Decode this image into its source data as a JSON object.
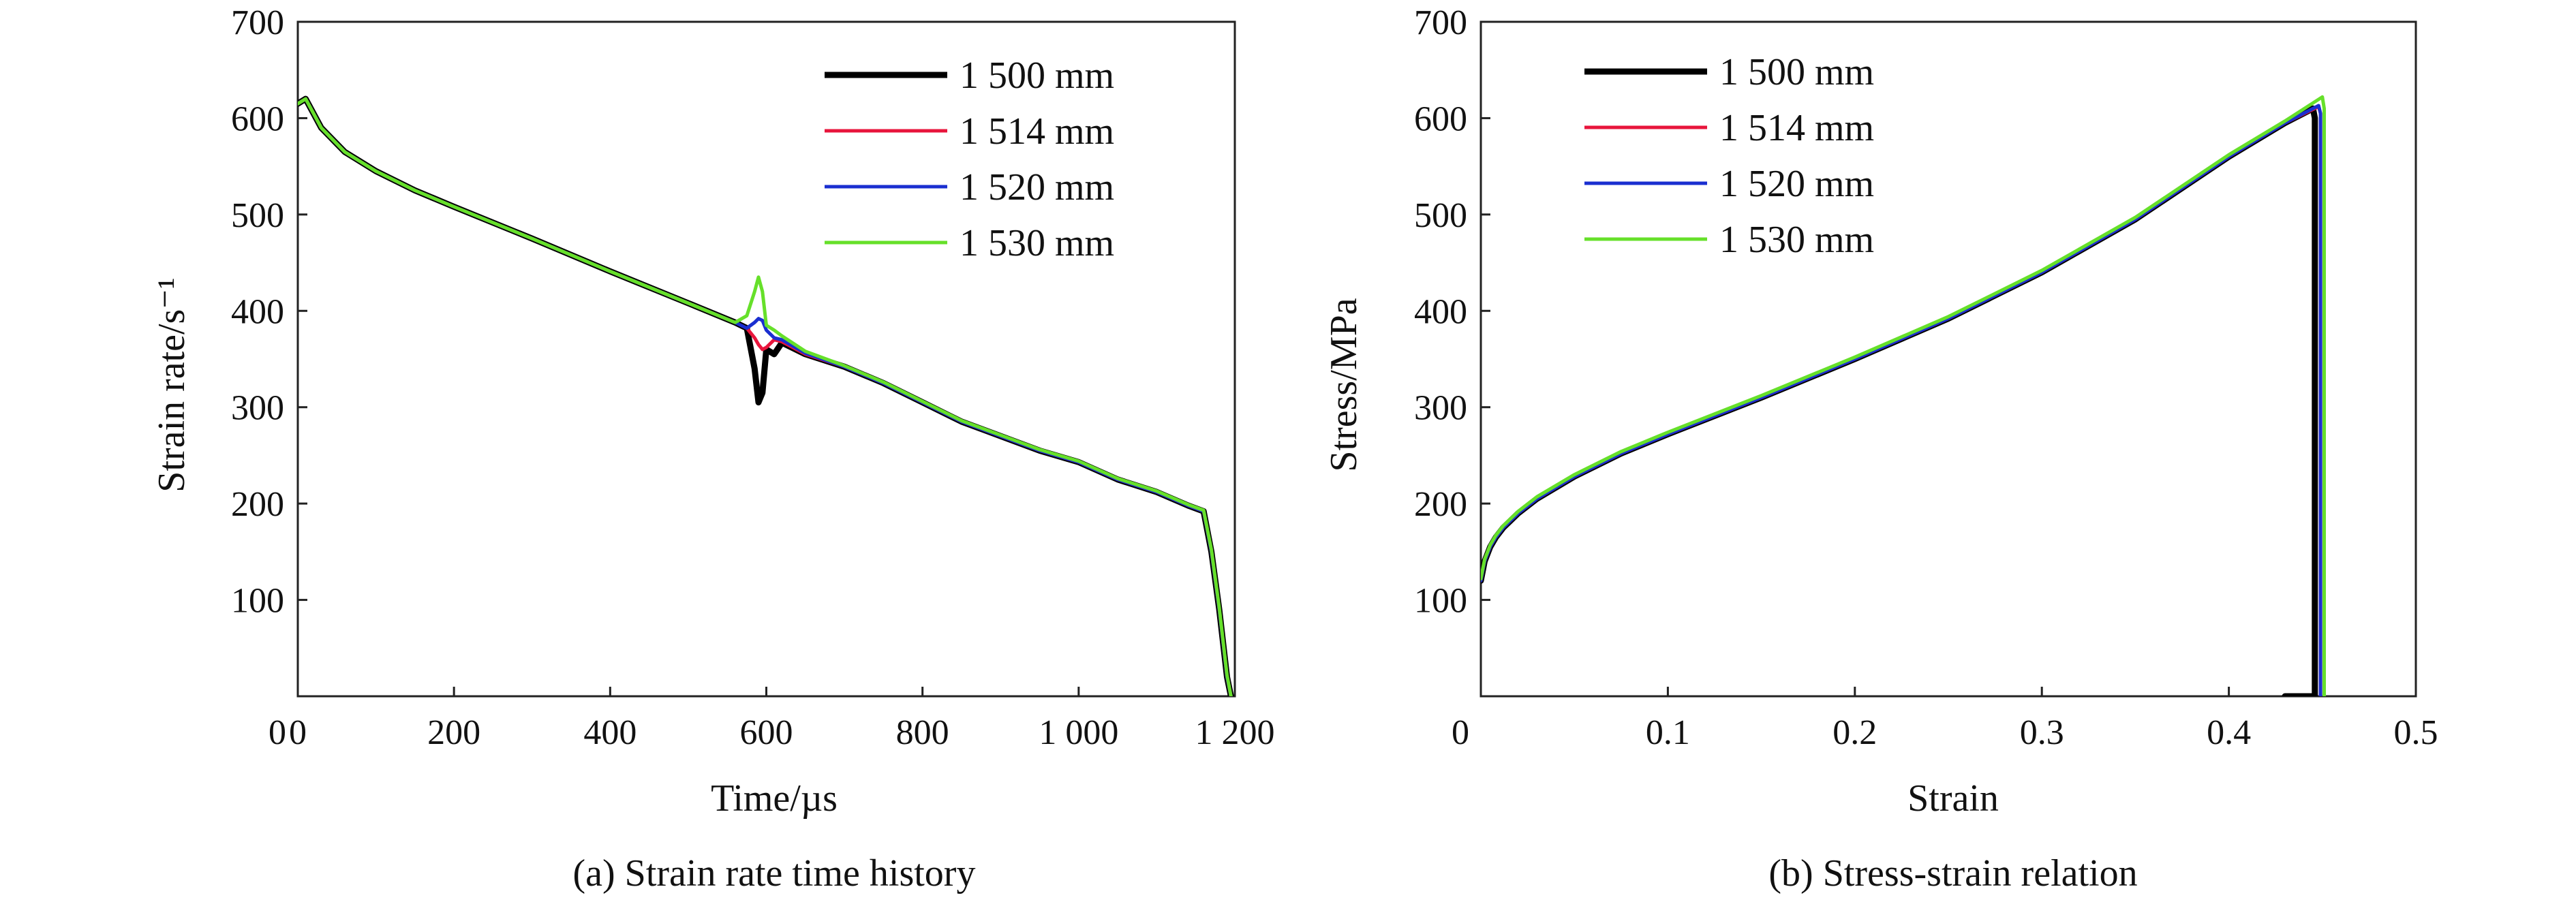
{
  "chart_data": [
    {
      "type": "line",
      "caption": "(a) Strain rate time history",
      "xlabel": "Time/µs",
      "ylabel": "Strain rate/s⁻¹",
      "xlim": [
        0,
        1200
      ],
      "ylim": [
        0,
        700
      ],
      "xticks": [
        0,
        200,
        400,
        600,
        800,
        1000,
        1200
      ],
      "xtick_labels": [
        "0",
        "200",
        "400",
        "600",
        "800",
        "1 000",
        "1 200"
      ],
      "yticks": [
        100,
        200,
        300,
        400,
        500,
        600,
        700
      ],
      "ytick_labels": [
        "100",
        "200",
        "300",
        "400",
        "500",
        "600",
        "700"
      ],
      "x_zero_label": "0",
      "legend_position": "top-right",
      "series": [
        {
          "name": "1 500 mm",
          "color": "#000000",
          "width": 9,
          "x": [
            0,
            10,
            30,
            60,
            100,
            150,
            200,
            300,
            400,
            500,
            560,
            575,
            585,
            590,
            595,
            600,
            610,
            620,
            650,
            700,
            750,
            800,
            850,
            900,
            950,
            1000,
            1050,
            1100,
            1140,
            1160,
            1170,
            1180,
            1190,
            1195
          ],
          "y": [
            615,
            620,
            590,
            565,
            545,
            525,
            508,
            475,
            441,
            408,
            388,
            382,
            340,
            305,
            315,
            360,
            355,
            367,
            355,
            342,
            325,
            305,
            285,
            270,
            255,
            243,
            225,
            212,
            198,
            192,
            150,
            90,
            20,
            0
          ]
        },
        {
          "name": "1 514 mm",
          "color": "#e8153c",
          "width": 5,
          "x": [
            0,
            10,
            30,
            60,
            100,
            150,
            200,
            300,
            400,
            500,
            560,
            575,
            585,
            590,
            595,
            600,
            610,
            620,
            650,
            700,
            750,
            800,
            850,
            900,
            950,
            1000,
            1050,
            1100,
            1140,
            1160,
            1170,
            1180,
            1190,
            1195
          ],
          "y": [
            615,
            620,
            590,
            565,
            545,
            525,
            508,
            475,
            441,
            408,
            388,
            382,
            372,
            365,
            360,
            362,
            370,
            368,
            355,
            342,
            325,
            305,
            285,
            270,
            255,
            243,
            225,
            212,
            198,
            192,
            150,
            90,
            20,
            0
          ]
        },
        {
          "name": "1 520 mm",
          "color": "#1a2fd0",
          "width": 5,
          "x": [
            0,
            10,
            30,
            60,
            100,
            150,
            200,
            300,
            400,
            500,
            560,
            575,
            585,
            590,
            595,
            600,
            610,
            620,
            650,
            700,
            750,
            800,
            850,
            900,
            950,
            1000,
            1050,
            1100,
            1140,
            1160,
            1170,
            1180,
            1190,
            1195
          ],
          "y": [
            615,
            620,
            590,
            565,
            545,
            525,
            508,
            475,
            441,
            408,
            388,
            382,
            388,
            392,
            390,
            380,
            372,
            370,
            356,
            342,
            325,
            305,
            285,
            270,
            255,
            243,
            225,
            212,
            198,
            192,
            150,
            90,
            20,
            0
          ]
        },
        {
          "name": "1 530 mm",
          "color": "#66e02a",
          "width": 5,
          "x": [
            0,
            10,
            30,
            60,
            100,
            150,
            200,
            300,
            400,
            500,
            560,
            575,
            585,
            590,
            595,
            600,
            610,
            620,
            650,
            700,
            750,
            800,
            850,
            900,
            950,
            1000,
            1050,
            1100,
            1140,
            1160,
            1170,
            1180,
            1190,
            1195
          ],
          "y": [
            615,
            620,
            590,
            565,
            545,
            525,
            508,
            475,
            441,
            408,
            388,
            395,
            420,
            435,
            420,
            385,
            380,
            374,
            358,
            343,
            326,
            306,
            286,
            271,
            256,
            244,
            226,
            213,
            199,
            193,
            152,
            92,
            22,
            0
          ]
        }
      ]
    },
    {
      "type": "line",
      "caption": "(b) Stress-strain relation",
      "xlabel": "Strain",
      "ylabel": "Stress/MPa",
      "xlim": [
        0,
        0.5
      ],
      "ylim": [
        0,
        700
      ],
      "xticks": [
        0.1,
        0.2,
        0.3,
        0.4,
        0.5
      ],
      "xtick_labels": [
        "0.1",
        "0.2",
        "0.3",
        "0.4",
        "0.5"
      ],
      "yticks": [
        100,
        200,
        300,
        400,
        500,
        600,
        700
      ],
      "ytick_labels": [
        "100",
        "200",
        "300",
        "400",
        "500",
        "600",
        "700"
      ],
      "x_zero_label": "0",
      "legend_position": "top-left",
      "series": [
        {
          "name": "1 500 mm",
          "color": "#000000",
          "width": 9,
          "x": [
            0.0,
            0.002,
            0.005,
            0.008,
            0.012,
            0.02,
            0.03,
            0.05,
            0.075,
            0.1,
            0.15,
            0.2,
            0.25,
            0.3,
            0.35,
            0.4,
            0.43,
            0.445,
            0.446,
            0.446,
            0.443,
            0.43
          ],
          "y": [
            120,
            140,
            155,
            165,
            175,
            190,
            205,
            228,
            252,
            272,
            310,
            350,
            392,
            440,
            495,
            560,
            595,
            610,
            600,
            0,
            0,
            0
          ]
        },
        {
          "name": "1 514 mm",
          "color": "#e8153c",
          "width": 5,
          "x": [
            0.0,
            0.002,
            0.005,
            0.008,
            0.012,
            0.02,
            0.03,
            0.05,
            0.075,
            0.1,
            0.15,
            0.2,
            0.25,
            0.3,
            0.35,
            0.4,
            0.43,
            0.448,
            0.449,
            0.449
          ],
          "y": [
            120,
            140,
            155,
            165,
            175,
            190,
            205,
            228,
            252,
            272,
            310,
            350,
            392,
            440,
            495,
            560,
            595,
            612,
            605,
            0
          ]
        },
        {
          "name": "1 520 mm",
          "color": "#1a2fd0",
          "width": 5,
          "x": [
            0.0,
            0.002,
            0.005,
            0.008,
            0.012,
            0.02,
            0.03,
            0.05,
            0.075,
            0.1,
            0.15,
            0.2,
            0.25,
            0.3,
            0.35,
            0.4,
            0.43,
            0.448,
            0.449,
            0.449
          ],
          "y": [
            120,
            140,
            155,
            165,
            175,
            190,
            205,
            228,
            252,
            272,
            310,
            350,
            392,
            440,
            495,
            560,
            595,
            613,
            605,
            0
          ]
        },
        {
          "name": "1 530 mm",
          "color": "#66e02a",
          "width": 5,
          "x": [
            0.0,
            0.002,
            0.005,
            0.008,
            0.012,
            0.02,
            0.03,
            0.05,
            0.075,
            0.1,
            0.15,
            0.2,
            0.25,
            0.3,
            0.35,
            0.4,
            0.43,
            0.45,
            0.451,
            0.451
          ],
          "y": [
            122,
            142,
            157,
            167,
            177,
            192,
            207,
            230,
            254,
            274,
            312,
            352,
            394,
            442,
            497,
            562,
            597,
            622,
            610,
            0
          ]
        }
      ]
    }
  ]
}
